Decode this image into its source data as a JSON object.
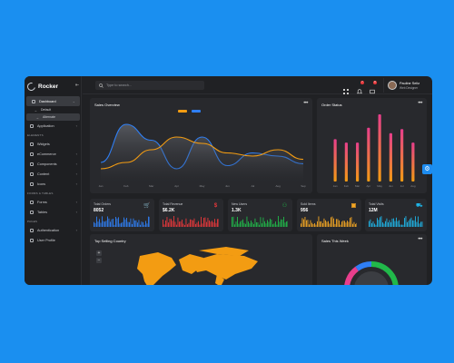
{
  "brand": {
    "name": "Rocker"
  },
  "search": {
    "placeholder": "Type to search..."
  },
  "user": {
    "name": "Pauline Seitz",
    "role": "Web Designer"
  },
  "notifications": {
    "count": "7"
  },
  "messages": {
    "count": "8"
  },
  "sidebar": {
    "dashboard": "Dashboard",
    "sub": [
      "Default",
      "Alternate"
    ],
    "items": [
      "Application"
    ],
    "section_elements": "ELEMENTS",
    "elements": [
      "Widgets",
      "eCommerce",
      "Components",
      "Content",
      "Icons"
    ],
    "section_forms": "FORMS & TABLES",
    "forms": [
      "Forms",
      "Tables"
    ],
    "section_pages": "PAGES",
    "pages": [
      "Authentication",
      "User Profile"
    ]
  },
  "cards": {
    "sales_overview": "Sales Overview",
    "order_status": "Order Status",
    "top_selling": "Top Selling Country",
    "sales_week": "Sales This Week"
  },
  "stats": [
    {
      "label": "Total Orders",
      "value": "8052",
      "color": "#2f7ff5",
      "icon": "cart-icon"
    },
    {
      "label": "Total Revenue",
      "value": "$6.2K",
      "color": "#e8383b",
      "icon": "dollar-icon"
    },
    {
      "label": "New Users",
      "value": "1.3K",
      "color": "#21b84a",
      "icon": "users-icon"
    },
    {
      "label": "Sold Items",
      "value": "956",
      "color": "#f5a623",
      "icon": "box-icon"
    },
    {
      "label": "Total Visits",
      "value": "12M",
      "color": "#1fb5e8",
      "icon": "visits-icon"
    }
  ],
  "colors": {
    "accent": "#1d8cf0",
    "orange": "#f39c12",
    "pink": "#e83e8c",
    "blue": "#2f7ff5"
  },
  "chart_data": [
    {
      "type": "area",
      "title": "Sales Overview",
      "categories": [
        "Jan",
        "Feb",
        "Mar",
        "Apr",
        "May",
        "Jun",
        "Jul",
        "Aug",
        "Sep"
      ],
      "series": [
        {
          "values": [
            30,
            90,
            65,
            20,
            70,
            25,
            45,
            40,
            28
          ]
        },
        {
          "values": [
            20,
            30,
            50,
            70,
            60,
            45,
            40,
            50,
            35
          ]
        }
      ],
      "ylim": [
        0,
        100
      ]
    },
    {
      "type": "bar",
      "title": "Order Status",
      "categories": [
        "Jan",
        "Feb",
        "Mar",
        "Apr",
        "May",
        "Jun",
        "Jul",
        "Aug"
      ],
      "values": [
        63,
        58,
        58,
        80,
        100,
        72,
        78,
        58
      ],
      "ylim": [
        0,
        100
      ]
    },
    {
      "type": "pie",
      "title": "Sales This Week",
      "values": [
        70,
        20,
        10
      ]
    }
  ]
}
